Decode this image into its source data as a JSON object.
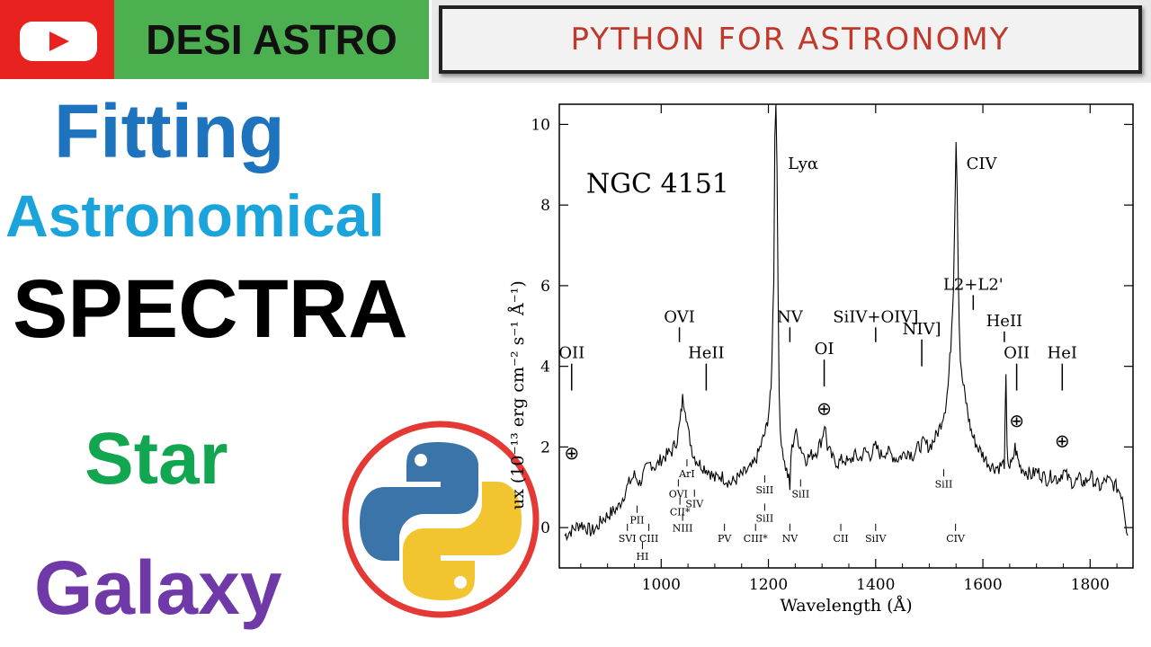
{
  "header": {
    "channel_name": "DESI ASTRO",
    "banner_text": "PYTHON FOR ASTRONOMY",
    "youtube_icon": "youtube-play-icon",
    "colors": {
      "youtube_red": "#e8231f",
      "brand_green": "#4caf50",
      "banner_text": "#c0392b"
    }
  },
  "titles": {
    "line1": "Fitting",
    "line2": "Astronomical",
    "line3": "SPECTRA",
    "line4": "Star",
    "line5": "Galaxy",
    "colors": {
      "line1": "#1e73be",
      "line2": "#1ba4dc",
      "line3": "#000000",
      "line4": "#13a650",
      "line5": "#6f3aa8"
    }
  },
  "logo": {
    "icon": "python-logo-icon",
    "ring_color": "#e53935"
  },
  "chart_data": {
    "type": "line",
    "title": "NGC 4151",
    "xlabel": "Wavelength (Å)",
    "ylabel": "Flux (10⁻¹³ erg cm⁻² s⁻¹ Å⁻¹)",
    "ylabel_visible": "ux (10⁻¹³ erg cm⁻² s⁻¹ Å⁻¹)",
    "xlim": [
      810,
      1880
    ],
    "ylim": [
      -1,
      10.5
    ],
    "x_ticks": [
      1000,
      1200,
      1400,
      1600,
      1800
    ],
    "y_ticks": [
      0,
      2,
      4,
      6,
      8,
      10
    ],
    "grid": false,
    "legend": "none",
    "series": [
      {
        "x": [
          820,
          830,
          840,
          850,
          860,
          870,
          880,
          890,
          900,
          910,
          920,
          930,
          940,
          950,
          960,
          970,
          980,
          990,
          1000,
          1010,
          1020,
          1030,
          1035,
          1040,
          1045,
          1050,
          1060,
          1070,
          1080,
          1090,
          1100,
          1110,
          1120,
          1130,
          1140,
          1150,
          1160,
          1170,
          1180,
          1190,
          1195,
          1200,
          1205,
          1210,
          1212,
          1214,
          1216,
          1218,
          1220,
          1222,
          1226,
          1230,
          1238,
          1240,
          1242,
          1250,
          1260,
          1270,
          1280,
          1290,
          1300,
          1305,
          1310,
          1320,
          1330,
          1340,
          1350,
          1360,
          1370,
          1380,
          1390,
          1400,
          1410,
          1420,
          1430,
          1440,
          1450,
          1460,
          1470,
          1480,
          1490,
          1500,
          1510,
          1520,
          1530,
          1535,
          1540,
          1545,
          1548,
          1550,
          1552,
          1554,
          1556,
          1558,
          1560,
          1565,
          1570,
          1575,
          1580,
          1590,
          1600,
          1610,
          1620,
          1630,
          1640,
          1643,
          1645,
          1648,
          1650,
          1655,
          1660,
          1665,
          1670,
          1680,
          1690,
          1700,
          1710,
          1720,
          1730,
          1740,
          1750,
          1760,
          1770,
          1780,
          1790,
          1800,
          1810,
          1820,
          1830,
          1840,
          1850,
          1860,
          1870
        ],
        "y": [
          -0.2,
          -0.1,
          0.0,
          0.1,
          0.0,
          -0.1,
          0.0,
          0.2,
          0.3,
          0.4,
          0.5,
          0.8,
          1.1,
          1.3,
          1.1,
          1.4,
          1.6,
          1.5,
          1.7,
          1.8,
          1.9,
          2.2,
          2.6,
          3.2,
          3.0,
          2.4,
          1.8,
          1.6,
          1.5,
          1.4,
          1.2,
          1.3,
          1.2,
          1.1,
          1.2,
          1.3,
          1.4,
          1.5,
          1.8,
          2.2,
          2.4,
          2.8,
          3.4,
          6.2,
          9.8,
          10.5,
          9.0,
          6.0,
          3.2,
          2.4,
          2.0,
          1.6,
          1.2,
          0.9,
          1.8,
          2.4,
          2.0,
          1.7,
          1.8,
          1.9,
          2.2,
          2.6,
          2.0,
          1.7,
          1.6,
          1.7,
          1.6,
          1.8,
          1.7,
          1.9,
          1.8,
          2.0,
          1.8,
          1.9,
          1.8,
          1.7,
          1.8,
          1.9,
          1.8,
          2.0,
          2.1,
          2.0,
          2.2,
          2.5,
          3.0,
          3.5,
          4.5,
          6.0,
          8.0,
          9.7,
          8.5,
          6.5,
          5.0,
          4.2,
          3.8,
          3.4,
          3.0,
          2.6,
          2.3,
          2.0,
          1.8,
          1.6,
          1.5,
          1.5,
          1.6,
          3.7,
          1.9,
          1.6,
          1.5,
          1.6,
          2.0,
          1.7,
          1.5,
          1.4,
          1.3,
          1.4,
          1.3,
          1.2,
          1.3,
          1.2,
          1.4,
          1.2,
          1.1,
          1.2,
          1.1,
          1.3,
          1.1,
          1.0,
          1.2,
          1.1,
          1.0,
          0.8,
          -0.2
        ]
      }
    ],
    "annotations_upper": [
      {
        "label": "OII",
        "x": 833,
        "y": 4.2,
        "tick_to": 3.4
      },
      {
        "label": "OVI",
        "x": 1034,
        "y": 5.1,
        "tick_to": 4.6
      },
      {
        "label": "HeII",
        "x": 1084,
        "y": 4.2,
        "tick_to": 3.4
      },
      {
        "label": "Lyα",
        "x": 1216,
        "y": 8.9,
        "tick_to": null
      },
      {
        "label": "NV",
        "x": 1240,
        "y": 5.1,
        "tick_to": 4.6
      },
      {
        "label": "OI",
        "x": 1304,
        "y": 4.3,
        "tick_to": 3.5
      },
      {
        "label": "SiIV+OIV]",
        "x": 1400,
        "y": 5.1,
        "tick_to": 4.6
      },
      {
        "label": "NIV]",
        "x": 1486,
        "y": 4.8,
        "tick_to": 4.0
      },
      {
        "label": "CIV",
        "x": 1549,
        "y": 8.9,
        "tick_to": null
      },
      {
        "label": "L2+L2'",
        "x": 1582,
        "y": 5.9,
        "tick_to": 5.4
      },
      {
        "label": "HeII",
        "x": 1640,
        "y": 5.0,
        "tick_to": 4.6
      },
      {
        "label": "OII",
        "x": 1663,
        "y": 4.2,
        "tick_to": 3.4
      },
      {
        "label": "HeI",
        "x": 1748,
        "y": 4.2,
        "tick_to": 3.4
      }
    ],
    "earth_symbols": [
      {
        "symbol": "⊕",
        "x": 833,
        "y": 1.7
      },
      {
        "symbol": "⊕",
        "x": 1304,
        "y": 2.8
      },
      {
        "symbol": "⊕",
        "x": 1663,
        "y": 2.5
      },
      {
        "symbol": "⊕",
        "x": 1748,
        "y": 2.0
      }
    ],
    "annotations_lower": [
      {
        "label": "ArI",
        "x": 1048,
        "y": 1.25
      },
      {
        "label": "OVI",
        "x": 1032,
        "y": 0.75
      },
      {
        "label": "SIV",
        "x": 1062,
        "y": 0.5
      },
      {
        "label": "CII*",
        "x": 1035,
        "y": 0.3
      },
      {
        "label": "NIII",
        "x": 1040,
        "y": -0.1
      },
      {
        "label": "PII",
        "x": 955,
        "y": 0.1
      },
      {
        "label": "SVI",
        "x": 937,
        "y": -0.35
      },
      {
        "label": "CIII",
        "x": 977,
        "y": -0.35
      },
      {
        "label": "HI",
        "x": 965,
        "y": -0.8
      },
      {
        "label": "SiII",
        "x": 1193,
        "y": 0.85
      },
      {
        "label": "SiII",
        "x": 1260,
        "y": 0.75
      },
      {
        "label": "SiII",
        "x": 1193,
        "y": 0.15
      },
      {
        "label": "PV",
        "x": 1118,
        "y": -0.35
      },
      {
        "label": "CIII*",
        "x": 1176,
        "y": -0.35
      },
      {
        "label": "NV",
        "x": 1240,
        "y": -0.35
      },
      {
        "label": "CII",
        "x": 1335,
        "y": -0.35
      },
      {
        "label": "SiIV",
        "x": 1400,
        "y": -0.35
      },
      {
        "label": "SiII",
        "x": 1527,
        "y": 1.0
      },
      {
        "label": "CIV",
        "x": 1549,
        "y": -0.35
      }
    ]
  }
}
